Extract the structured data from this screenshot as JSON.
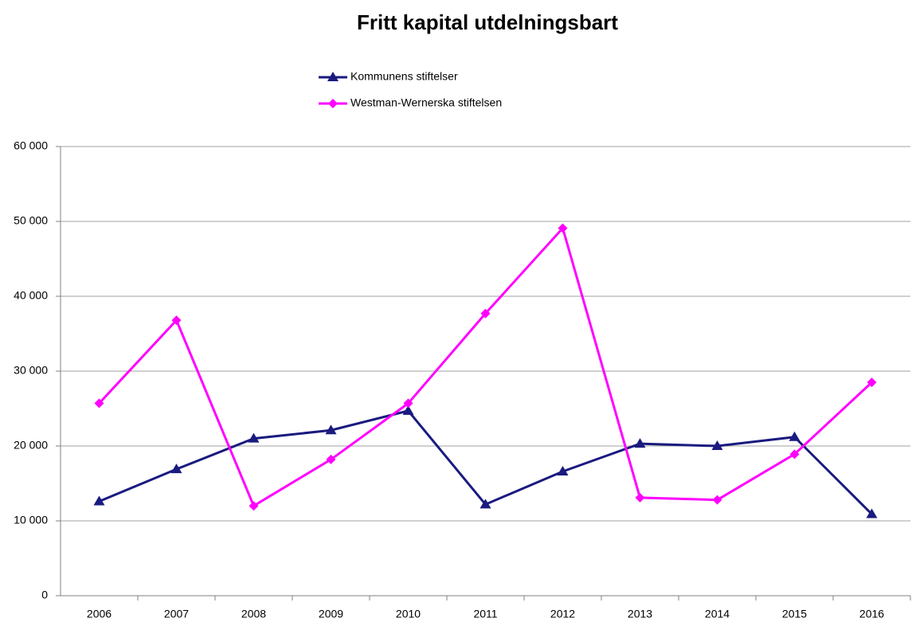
{
  "chart_data": {
    "type": "line",
    "title": "Fritt kapital utdelningsbart",
    "categories": [
      "2006",
      "2007",
      "2008",
      "2009",
      "2010",
      "2011",
      "2012",
      "2013",
      "2014",
      "2015",
      "2016"
    ],
    "series": [
      {
        "name": "Kommunens stiftelser",
        "color": "#1a1a80",
        "marker": "triangle",
        "values": [
          12600,
          16900,
          21000,
          22100,
          24700,
          12200,
          16600,
          20300,
          20000,
          21200,
          10900
        ]
      },
      {
        "name": "Westman-Wernerska stiftelsen",
        "color": "#ff00ff",
        "marker": "diamond",
        "values": [
          25700,
          36800,
          12000,
          18200,
          25700,
          37700,
          49100,
          13100,
          12800,
          18900,
          28500
        ]
      }
    ],
    "ylim": [
      0,
      60000
    ],
    "yticks": [
      0,
      {
        "value": 10000,
        "label": "10 000"
      },
      {
        "value": 20000,
        "label": "20 000"
      },
      {
        "value": 30000,
        "label": "30 000"
      },
      {
        "value": 40000,
        "label": "40 000"
      },
      {
        "value": 50000,
        "label": "50 000"
      },
      {
        "value": 60000,
        "label": "60 000"
      }
    ],
    "grid": true,
    "legend": "top"
  }
}
